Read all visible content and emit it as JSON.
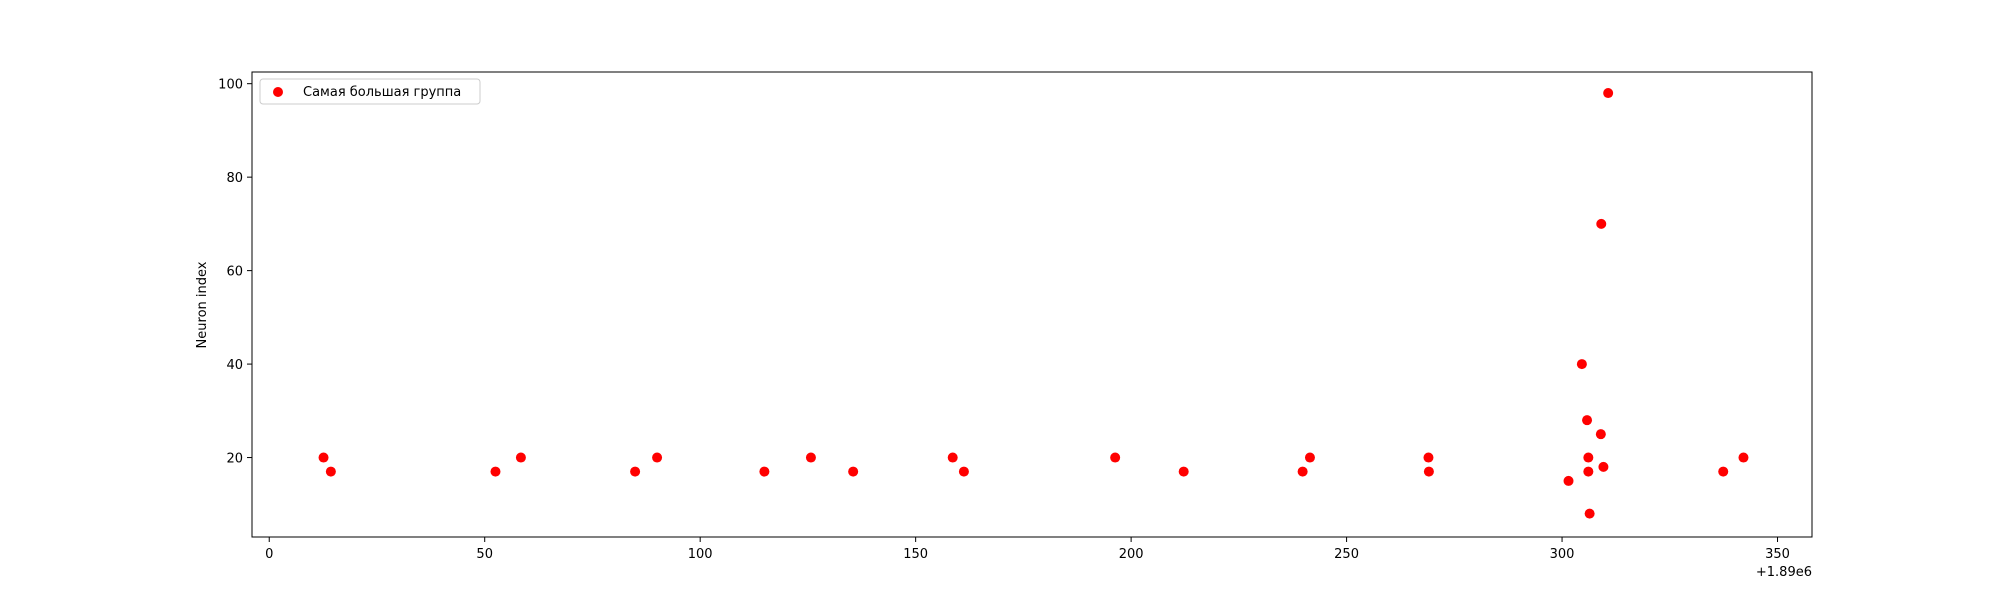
{
  "chart_data": {
    "type": "scatter",
    "xlabel": "",
    "ylabel": "Neuron index",
    "x_offset_label": "+1.89e6",
    "xlim": [
      -4,
      358
    ],
    "ylim": [
      3,
      102.5
    ],
    "x_ticks": [
      0,
      50,
      100,
      150,
      200,
      250,
      300,
      350
    ],
    "y_ticks": [
      20,
      40,
      60,
      80,
      100
    ],
    "grid": false,
    "legend_position": "top-left",
    "series": [
      {
        "name": "Самая большая группа",
        "color": "#ff0000",
        "marker": "circle",
        "points": [
          {
            "x": 12.6,
            "y": 20
          },
          {
            "x": 14.3,
            "y": 17
          },
          {
            "x": 52.5,
            "y": 17
          },
          {
            "x": 58.4,
            "y": 20
          },
          {
            "x": 84.9,
            "y": 17
          },
          {
            "x": 90.0,
            "y": 20
          },
          {
            "x": 114.9,
            "y": 17
          },
          {
            "x": 125.7,
            "y": 20
          },
          {
            "x": 135.5,
            "y": 17
          },
          {
            "x": 158.6,
            "y": 20
          },
          {
            "x": 161.2,
            "y": 17
          },
          {
            "x": 196.3,
            "y": 20
          },
          {
            "x": 212.2,
            "y": 17
          },
          {
            "x": 239.8,
            "y": 17
          },
          {
            "x": 241.5,
            "y": 20
          },
          {
            "x": 269.0,
            "y": 20
          },
          {
            "x": 269.1,
            "y": 17
          },
          {
            "x": 301.5,
            "y": 15
          },
          {
            "x": 304.6,
            "y": 40
          },
          {
            "x": 305.8,
            "y": 28
          },
          {
            "x": 306.1,
            "y": 20
          },
          {
            "x": 306.1,
            "y": 17
          },
          {
            "x": 306.4,
            "y": 8
          },
          {
            "x": 309.0,
            "y": 25
          },
          {
            "x": 309.1,
            "y": 70
          },
          {
            "x": 309.6,
            "y": 18
          },
          {
            "x": 310.7,
            "y": 98
          },
          {
            "x": 337.4,
            "y": 17
          },
          {
            "x": 342.1,
            "y": 20
          }
        ]
      }
    ]
  }
}
